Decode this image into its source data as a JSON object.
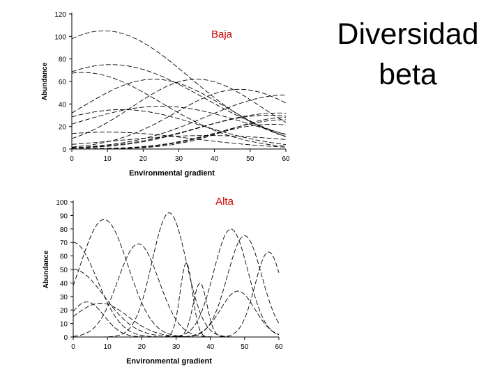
{
  "slide": {
    "title_line1": "Diversidad",
    "title_line2": "beta"
  },
  "chart_data": [
    {
      "type": "line",
      "annotation": "Baja",
      "xlabel": "Environmental gradient",
      "ylabel": "Abundance",
      "xlim": [
        0,
        60
      ],
      "ylim": [
        0,
        120
      ],
      "xticks": [
        0,
        10,
        20,
        30,
        40,
        50,
        60
      ],
      "yticks": [
        0,
        20,
        40,
        60,
        80,
        100,
        120
      ],
      "grid": false,
      "legend": "none",
      "series": [
        {
          "peak": 105,
          "center": 9,
          "width": 24
        },
        {
          "peak": 75,
          "center": 11,
          "width": 26
        },
        {
          "peak": 68,
          "center": 3,
          "width": 22
        },
        {
          "peak": 62,
          "center": 23,
          "width": 20
        },
        {
          "peak": 62,
          "center": 35,
          "width": 18
        },
        {
          "peak": 53,
          "center": 47,
          "width": 18
        },
        {
          "peak": 48,
          "center": 60,
          "width": 22
        },
        {
          "peak": 38,
          "center": 25,
          "width": 24
        },
        {
          "peak": 35,
          "center": 14,
          "width": 22
        },
        {
          "peak": 32,
          "center": 58,
          "width": 22
        },
        {
          "peak": 30,
          "center": 55,
          "width": 20
        },
        {
          "peak": 28,
          "center": 60,
          "width": 16
        },
        {
          "peak": 26,
          "center": 60,
          "width": 18
        },
        {
          "peak": 22,
          "center": 56,
          "width": 16
        },
        {
          "peak": 15,
          "center": 10,
          "width": 24
        },
        {
          "peak": 12,
          "center": 38,
          "width": 26
        }
      ]
    },
    {
      "type": "line",
      "annotation": "Alta",
      "xlabel": "Environmental gradient",
      "ylabel": "Abundance",
      "xlim": [
        0,
        60
      ],
      "ylim": [
        0,
        100
      ],
      "xticks": [
        0,
        10,
        20,
        30,
        40,
        50,
        60
      ],
      "yticks": [
        0,
        10,
        20,
        30,
        40,
        50,
        60,
        70,
        80,
        90,
        100
      ],
      "grid": false,
      "legend": "none",
      "series": [
        {
          "peak": 87,
          "center": 9,
          "width": 7
        },
        {
          "peak": 92,
          "center": 28,
          "width": 5
        },
        {
          "peak": 69,
          "center": 19,
          "width": 6
        },
        {
          "peak": 80,
          "center": 46,
          "width": 5
        },
        {
          "peak": 75,
          "center": 50,
          "width": 5
        },
        {
          "peak": 55,
          "center": 33,
          "width": 1.8
        },
        {
          "peak": 40,
          "center": 37,
          "width": 2
        },
        {
          "peak": 63,
          "center": 57,
          "width": 4
        },
        {
          "peak": 34,
          "center": 48,
          "width": 5
        },
        {
          "peak": 26,
          "center": 4,
          "width": 5
        },
        {
          "peak": 70,
          "center": 0,
          "width": 7
        },
        {
          "peak": 50,
          "center": 0,
          "width": 9
        },
        {
          "peak": 25,
          "center": 8,
          "width": 8
        }
      ]
    }
  ]
}
